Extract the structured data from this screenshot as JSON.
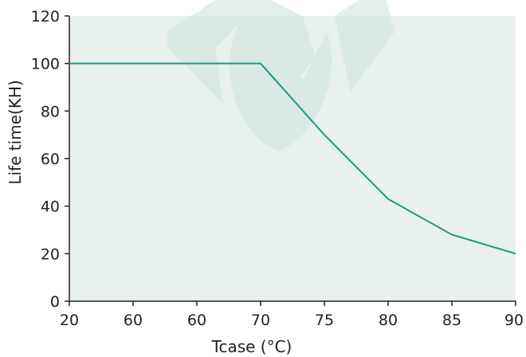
{
  "chart_data": {
    "type": "line",
    "title": "",
    "xlabel": "Tcase (°C)",
    "ylabel": "Life time(KH)",
    "x_tick_labels": [
      "20",
      "60",
      "60",
      "70",
      "75",
      "80",
      "85",
      "90"
    ],
    "y_ticks": [
      0,
      20,
      40,
      60,
      80,
      100,
      120
    ],
    "ylim": [
      0,
      120
    ],
    "grid": false,
    "series": [
      {
        "x": [
          "20",
          "60",
          "60",
          "70",
          "75",
          "80",
          "85",
          "90"
        ],
        "values": [
          100,
          100,
          100,
          100,
          70,
          43,
          28,
          20
        ]
      }
    ]
  },
  "colors": {
    "plot_background": "#e8f1ec",
    "line": "#1a9a87",
    "axis": "#222222",
    "watermark": "#cfe3dc"
  }
}
